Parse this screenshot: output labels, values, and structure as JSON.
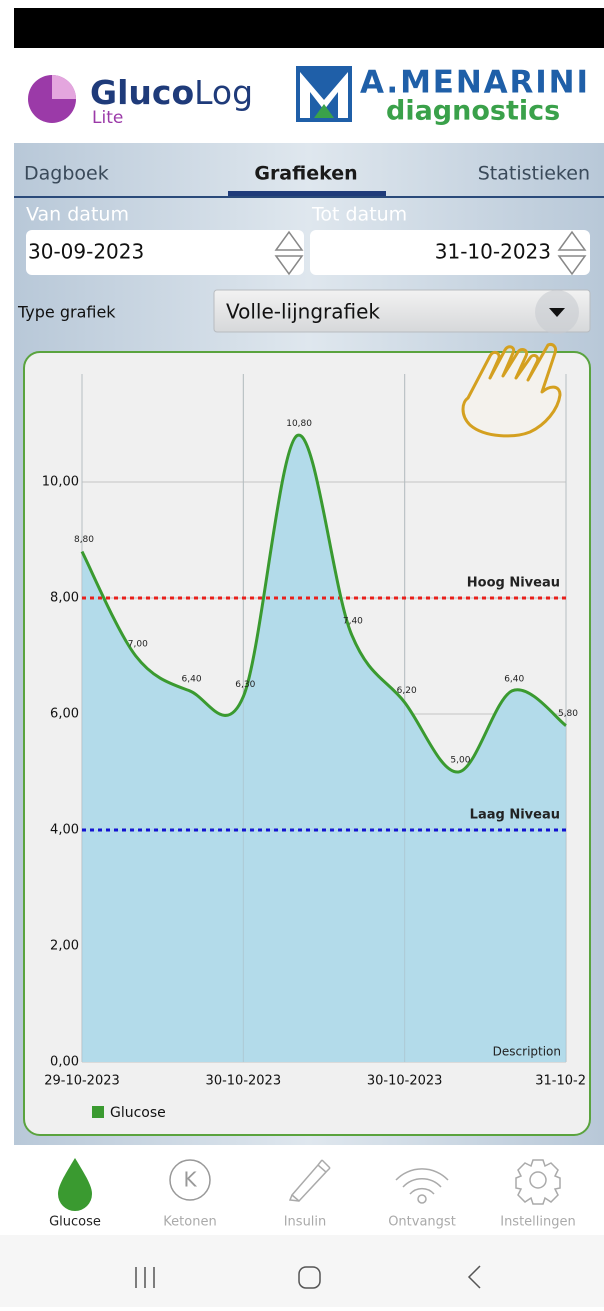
{
  "header": {
    "app_name_bold": "Gluco",
    "app_name_light": "Log",
    "app_edition": "Lite",
    "brand": "A.MENARINI",
    "brand_sub": "diagnostics"
  },
  "tabs": [
    "Dagboek",
    "Grafieken",
    "Statistieken"
  ],
  "date_from": {
    "label": "Van datum",
    "value": "30-09-2023"
  },
  "date_to": {
    "label": "Tot datum",
    "value": "31-10-2023"
  },
  "chart_type": {
    "label": "Type grafiek",
    "value": "Volle-lijngrafiek"
  },
  "chart_data": {
    "type": "area",
    "categories": [
      "29-10-2023",
      null,
      null,
      "30-10-2023",
      null,
      null,
      "30-10-2023",
      null,
      null,
      "31-10-2"
    ],
    "series": [
      {
        "name": "Glucose",
        "color": "#3a9a30",
        "area_color": "#b3dbea",
        "values": [
          8.8,
          7.0,
          6.4,
          6.3,
          10.8,
          7.4,
          6.2,
          5.0,
          6.4,
          5.8
        ],
        "value_labels": [
          "8,80",
          "7,00",
          "6,40",
          "6,30",
          "10,80",
          "7,40",
          "6,20",
          "5,00",
          "6,40",
          "5,80"
        ]
      }
    ],
    "ylim": [
      0,
      12
    ],
    "yticks": [
      {
        "value": 0,
        "label": "0,00"
      },
      {
        "value": 2,
        "label": "2,00"
      },
      {
        "value": 4,
        "label": "4,00"
      },
      {
        "value": 6,
        "label": "6,00"
      },
      {
        "value": 8,
        "label": "8,00"
      },
      {
        "value": 10,
        "label": "10,00"
      }
    ],
    "grid": true,
    "reference_lines": [
      {
        "label": "Hoog Niveau",
        "value": 8,
        "color": "#e8201c"
      },
      {
        "label": "Laag Niveau",
        "value": 4,
        "color": "#1010d0"
      }
    ],
    "axis_note": "Description"
  },
  "ketone_icon": "K",
  "nav": [
    "Glucose",
    "Ketonen",
    "Insulin",
    "Ontvangst",
    "Instellingen"
  ]
}
